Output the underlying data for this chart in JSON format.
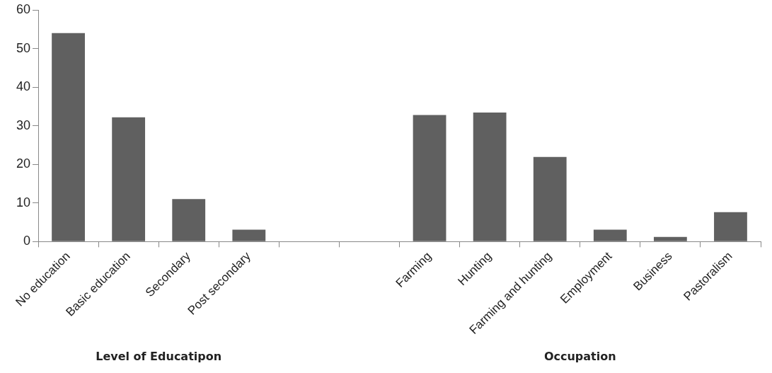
{
  "chart_data": {
    "type": "bar",
    "categories": [
      "No education",
      "Basic education",
      "Secondary",
      "Post secondary",
      null,
      null,
      "Farming",
      "Hunting",
      "Farming and hunting",
      "Employment",
      "Business",
      "Pastoralism"
    ],
    "values": [
      54.0,
      32.2,
      11.0,
      3.1,
      null,
      null,
      32.8,
      33.4,
      21.9,
      3.1,
      1.2,
      7.6
    ],
    "color": "#606060",
    "ylim": [
      0,
      60
    ],
    "yticks": [
      0,
      10,
      20,
      30,
      40,
      50,
      60
    ],
    "grid": false,
    "legend": false,
    "annotations": [
      "Level of Educatipon",
      "Occupation"
    ]
  }
}
